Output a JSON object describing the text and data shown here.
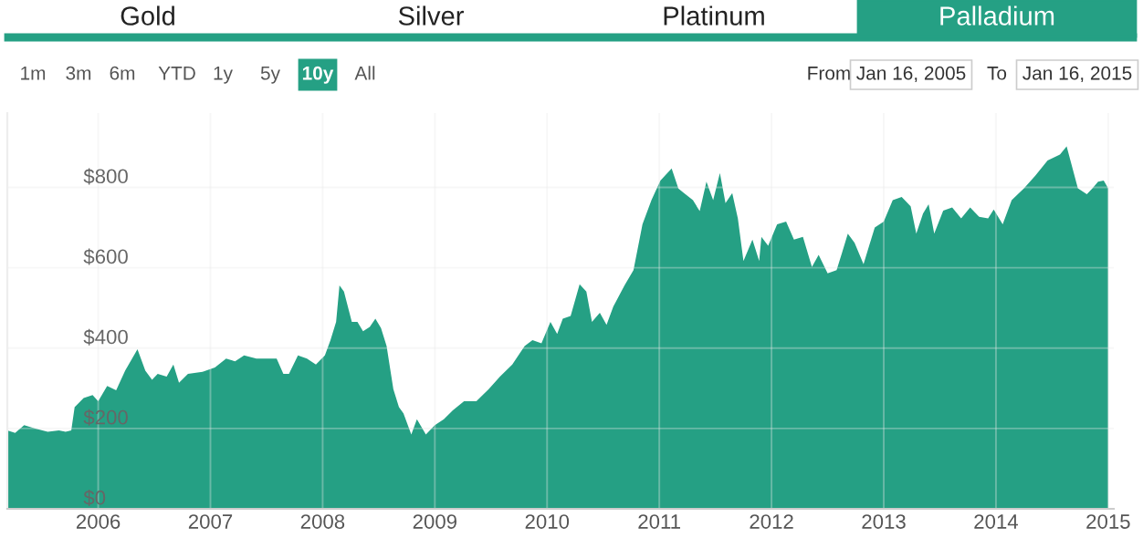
{
  "chart_data": {
    "type": "area",
    "color": "#25a084",
    "annotations": [
      "Gold",
      "Silver",
      "Platinum",
      "Palladium",
      "1m",
      "3m",
      "6m",
      "YTD",
      "1y",
      "5y",
      "10y",
      "All",
      "From",
      "Jan 16, 2005",
      "To",
      "Jan 16, 2015"
    ],
    "x": [
      2005.19,
      2005.26,
      2005.34,
      2005.44,
      2005.55,
      2005.65,
      2005.71,
      2005.76,
      2005.79,
      2005.87,
      2005.95,
      2006.0,
      2006.08,
      2006.16,
      2006.24,
      2006.35,
      2006.42,
      2006.48,
      2006.53,
      2006.61,
      2006.67,
      2006.72,
      2006.8,
      2006.93,
      2007.04,
      2007.14,
      2007.22,
      2007.3,
      2007.41,
      2007.51,
      2007.59,
      2007.65,
      2007.7,
      2007.78,
      2007.86,
      2007.94,
      2008.02,
      2008.07,
      2008.12,
      2008.15,
      2008.19,
      2008.26,
      2008.31,
      2008.36,
      2008.42,
      2008.47,
      2008.52,
      2008.57,
      2008.63,
      2008.68,
      2008.72,
      2008.79,
      2008.84,
      2008.92,
      2009.0,
      2009.08,
      2009.16,
      2009.26,
      2009.37,
      2009.48,
      2009.58,
      2009.69,
      2009.8,
      2009.87,
      2009.95,
      2010.03,
      2010.09,
      2010.14,
      2010.21,
      2010.29,
      2010.35,
      2010.4,
      2010.47,
      2010.53,
      2010.59,
      2010.69,
      2010.77,
      2010.85,
      2010.93,
      2011.01,
      2011.11,
      2011.17,
      2011.22,
      2011.3,
      2011.36,
      2011.42,
      2011.48,
      2011.54,
      2011.59,
      2011.65,
      2011.7,
      2011.75,
      2011.83,
      2011.89,
      2011.91,
      2011.97,
      2012.05,
      2012.13,
      2012.2,
      2012.28,
      2012.36,
      2012.42,
      2012.5,
      2012.58,
      2012.63,
      2012.68,
      2012.74,
      2012.82,
      2012.87,
      2012.92,
      2013.0,
      2013.08,
      2013.16,
      2013.24,
      2013.29,
      2013.35,
      2013.4,
      2013.45,
      2013.53,
      2013.61,
      2013.69,
      2013.77,
      2013.85,
      2013.93,
      2013.98,
      2014.06,
      2014.14,
      2014.25,
      2014.35,
      2014.46,
      2014.57,
      2014.63,
      2014.73,
      2014.81,
      2014.86,
      2014.91,
      2014.96,
      2015.0
    ],
    "values": [
      195,
      189,
      208,
      200,
      192,
      195,
      192,
      195,
      253,
      276,
      283,
      268,
      306,
      295,
      344,
      397,
      344,
      321,
      336,
      329,
      359,
      314,
      336,
      341,
      352,
      374,
      367,
      382,
      374,
      374,
      374,
      336,
      336,
      382,
      374,
      359,
      382,
      420,
      465,
      556,
      541,
      465,
      465,
      442,
      453,
      473,
      450,
      405,
      298,
      253,
      238,
      185,
      223,
      185,
      208,
      223,
      245,
      268,
      268,
      298,
      329,
      359,
      405,
      420,
      412,
      465,
      435,
      473,
      480,
      559,
      541,
      465,
      488,
      458,
      503,
      556,
      594,
      708,
      768,
      817,
      847,
      797,
      786,
      768,
      741,
      814,
      768,
      836,
      761,
      786,
      723,
      617,
      670,
      617,
      677,
      655,
      708,
      715,
      670,
      677,
      602,
      632,
      586,
      594,
      639,
      685,
      662,
      609,
      655,
      700,
      715,
      768,
      776,
      753,
      685,
      735,
      758,
      685,
      742,
      750,
      723,
      750,
      727,
      723,
      745,
      708,
      768,
      798,
      829,
      867,
      882,
      902,
      798,
      783,
      798,
      814,
      817,
      798
    ],
    "xlim": [
      2005.19,
      2015.05
    ],
    "xticks": [
      2006,
      2007,
      2008,
      2009,
      2010,
      2011,
      2012,
      2013,
      2014,
      2015
    ],
    "ylim": [
      0,
      985
    ],
    "yticks": [
      {
        "value": 0,
        "label": "$0"
      },
      {
        "value": 200,
        "label": "$200"
      },
      {
        "value": 400,
        "label": "$400"
      },
      {
        "value": 600,
        "label": "$600"
      },
      {
        "value": 800,
        "label": "$800"
      }
    ],
    "grid": true
  }
}
